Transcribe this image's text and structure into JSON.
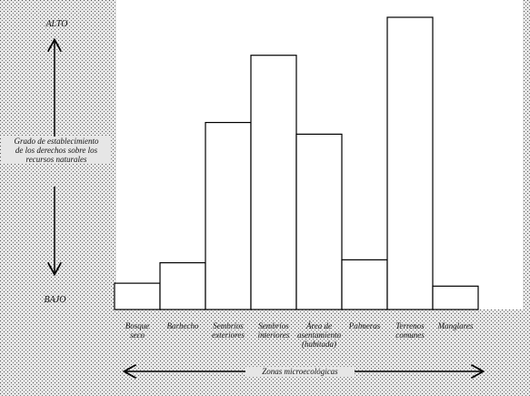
{
  "chart_data": {
    "type": "bar",
    "y_high_label": "ALTO",
    "y_low_label": "BAJO",
    "y_axis_label": "Grado de establecimiento\nde los derechos sobre los\nrecursos naturales",
    "x_axis_label": "Zonas microecológicas",
    "categories": [
      "Bosque\nseco",
      "Barbecho",
      "Sembríos\nexteriores",
      "Sembríos\ninteriores",
      "Área de\nasentamiento\n(habitada)",
      "Palmeras",
      "Terrenos\ncomunes",
      "Manglares"
    ],
    "values": [
      9,
      16,
      64,
      87,
      60,
      17,
      100,
      8
    ],
    "color": "#ffffff",
    "ylim": [
      0,
      100
    ]
  }
}
